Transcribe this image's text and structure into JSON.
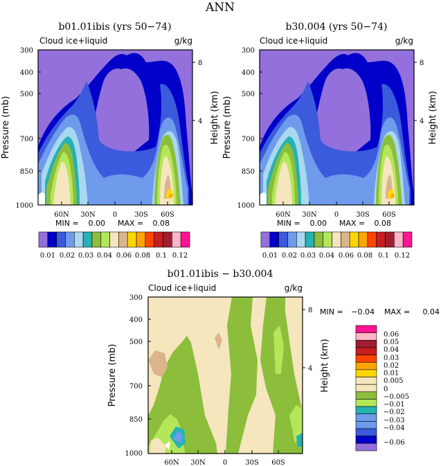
{
  "figure_title": "ANN",
  "colors": {
    "purple": "#9370db",
    "navy": "#0000c8",
    "blue": "#3c5adc",
    "light_blue": "#6e9beb",
    "pale_blue": "#aad8f0",
    "teal": "#25b2b2",
    "green": "#8cbe3c",
    "yellow_green": "#b4e65a",
    "wheat": "#f5e6be",
    "tan": "#dcb48c",
    "yellow": "#ffd700",
    "orange": "#ffa500",
    "red_orange": "#ff4500",
    "red": "#c81e1e",
    "dark_red": "#a01e32",
    "pink": "#ffb4c8",
    "magenta": "#ff1493",
    "white": "#ffffff"
  },
  "chart_data": [
    {
      "type": "contour",
      "title": "b01.01ibis (yrs 50−74)",
      "field_label": "Cloud ice+liquid",
      "units": "g/kg",
      "ylabel": "Pressure (mb)",
      "right_label": "Height (km)",
      "y_ticks": [
        "300",
        "400",
        "500",
        "700",
        "850",
        "1000"
      ],
      "height_ticks": [
        "8",
        "4"
      ],
      "x_ticks": [
        "60N",
        "30N",
        "0",
        "30S",
        "60S"
      ],
      "min_text": "MIN =",
      "min_value": "0.00",
      "max_text": "MAX =",
      "max_value": "0.08",
      "colorbar_labels": [
        "0.01",
        "0.02",
        "0.03",
        "0.04",
        "0.06",
        "0.08",
        "0.1",
        "0.12"
      ]
    },
    {
      "type": "contour",
      "title": "b30.004 (yrs 50−74)",
      "field_label": "Cloud ice+liquid",
      "units": "g/kg",
      "ylabel": "Pressure (mb)",
      "right_label": "Height (km)",
      "y_ticks": [
        "300",
        "400",
        "500",
        "700",
        "850",
        "1000"
      ],
      "height_ticks": [
        "8",
        "4"
      ],
      "x_ticks": [
        "60N",
        "30N",
        "0",
        "30S",
        "60S"
      ],
      "min_text": "MIN =",
      "min_value": "0.00",
      "max_text": "MAX =",
      "max_value": "0.08",
      "colorbar_labels": [
        "0.01",
        "0.02",
        "0.03",
        "0.04",
        "0.06",
        "0.08",
        "0.1",
        "0.12"
      ]
    },
    {
      "type": "contour",
      "title": "b01.01ibis − b30.004",
      "field_label": "Cloud ice+liquid",
      "units": "g/kg",
      "ylabel": "Pressure (mb)",
      "right_label": "Height (km)",
      "y_ticks": [
        "300",
        "400",
        "500",
        "700",
        "850",
        "1000"
      ],
      "height_ticks": [
        "8",
        "4"
      ],
      "x_ticks": [
        "60N",
        "30N",
        "0",
        "30S",
        "60S"
      ],
      "min_text": "MIN =",
      "min_value": "−0.04",
      "max_text": "MAX =",
      "max_value": "0.04",
      "legend_labels": [
        "0.06",
        "0.05",
        "0.04",
        "0.03",
        "0.02",
        "0.01",
        "0.005",
        "0",
        "−0.005",
        "−0.01",
        "−0.02",
        "−0.03",
        "−0.04",
        "−0.06"
      ]
    }
  ]
}
